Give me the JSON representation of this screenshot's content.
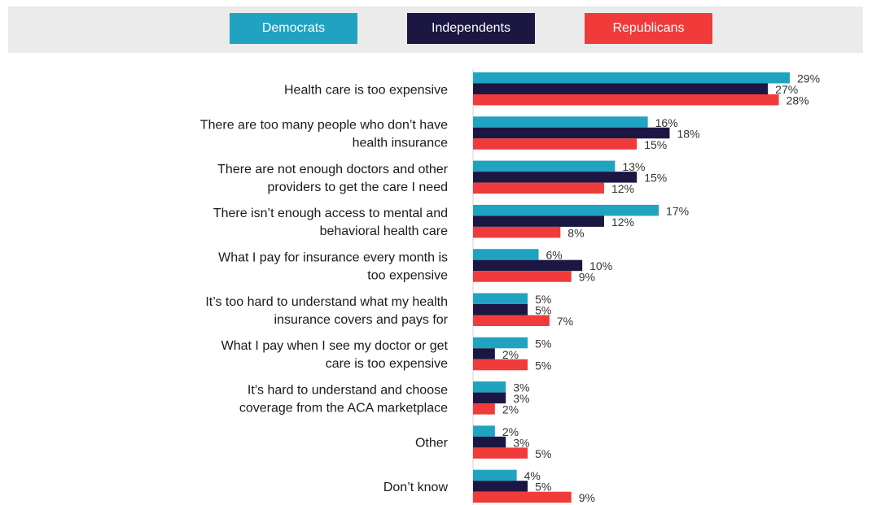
{
  "chart_data": {
    "type": "bar",
    "orientation": "horizontal",
    "legend_position": "top",
    "grid": false,
    "xlim": [
      0,
      29
    ],
    "colors": {
      "Democrats": "#1fa3c1",
      "Independents": "#1b1742",
      "Republicans": "#f03b3a"
    },
    "categories": [
      "Health care is too expensive",
      "There are too many people who don’t have health insurance",
      "There are not enough doctors and other providers to get the care I need",
      "There isn’t enough access to mental and behavioral health care",
      "What I pay for insurance every month is too expensive",
      "It’s too hard to understand what my health insurance covers and pays for",
      "What I pay when I see my doctor or get care is too expensive",
      "It’s hard to understand and choose coverage from the ACA marketplace",
      "Other",
      "Don’t know"
    ],
    "category_lines": [
      [
        "Health care is too expensive"
      ],
      [
        "There are too many people who don’t have",
        "health insurance"
      ],
      [
        "There are not enough doctors and other",
        "providers to get the care I need"
      ],
      [
        "There isn’t enough access to mental and",
        "behavioral health care"
      ],
      [
        "What I pay for insurance every month is",
        "too expensive"
      ],
      [
        "It’s too hard to understand what my health",
        "insurance covers and pays for"
      ],
      [
        "What I pay when I see my doctor or get",
        "care is too expensive"
      ],
      [
        "It’s hard to understand and choose",
        "coverage from the ACA marketplace"
      ],
      [
        "Other"
      ],
      [
        "Don’t know"
      ]
    ],
    "series": [
      {
        "name": "Democrats",
        "values": [
          29,
          16,
          13,
          17,
          6,
          5,
          5,
          3,
          2,
          4
        ]
      },
      {
        "name": "Independents",
        "values": [
          27,
          18,
          15,
          12,
          10,
          5,
          2,
          3,
          3,
          5
        ]
      },
      {
        "name": "Republicans",
        "values": [
          28,
          15,
          12,
          8,
          9,
          7,
          5,
          2,
          5,
          9
        ]
      }
    ],
    "value_suffix": "%"
  }
}
